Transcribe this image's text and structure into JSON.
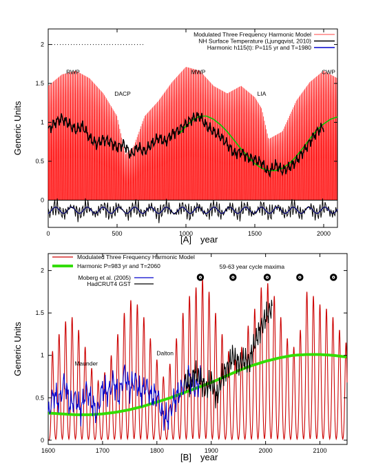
{
  "chart_data": [
    {
      "type": "line",
      "panel_label": "[A]",
      "xlabel": "year",
      "ylabel": "Generic Units",
      "xlim": [
        0,
        2100
      ],
      "ylim": [
        -0.35,
        2.2
      ],
      "xticks": [
        0,
        500,
        1000,
        1500,
        2000
      ],
      "yticks": [
        0,
        0.5,
        1,
        1.5,
        2
      ],
      "xtick_labels": [
        "0",
        "500",
        "1000",
        "1500",
        "2000"
      ],
      "ytick_labels": [
        "0",
        "0.5",
        "1",
        "1.5",
        "2"
      ],
      "legend_position": "top-right",
      "grid": false,
      "annotations": [
        {
          "text": "RWP",
          "x": 180,
          "y": 1.62
        },
        {
          "text": "DACP",
          "x": 540,
          "y": 1.34
        },
        {
          "text": "MWP",
          "x": 1090,
          "y": 1.62
        },
        {
          "text": "LIA",
          "x": 1550,
          "y": 1.34
        },
        {
          "text": "CWP",
          "x": 2035,
          "y": 1.62
        }
      ],
      "series": [
        {
          "name": "Modulated Three Frequency Harmonic Model",
          "color": "#ff0000",
          "envelope_x": [
            0,
            100,
            200,
            300,
            400,
            500,
            560,
            620,
            700,
            800,
            900,
            1000,
            1100,
            1200,
            1300,
            1400,
            1500,
            1550,
            1600,
            1700,
            1800,
            1900,
            2000,
            2100
          ],
          "envelope_y": [
            1.5,
            1.65,
            1.7,
            1.6,
            1.4,
            1.1,
            0.6,
            0.7,
            1.1,
            1.3,
            1.55,
            1.75,
            1.7,
            1.5,
            1.4,
            1.5,
            1.35,
            1.2,
            0.8,
            0.9,
            1.3,
            1.55,
            1.7,
            1.6
          ]
        },
        {
          "name": "NH Surface Temperature (Ljungqvist, 2010)",
          "color": "#000000",
          "x": [
            0,
            50,
            100,
            150,
            200,
            250,
            300,
            350,
            400,
            450,
            500,
            550,
            600,
            650,
            700,
            750,
            800,
            850,
            900,
            950,
            1000,
            1050,
            1100,
            1150,
            1200,
            1250,
            1300,
            1350,
            1400,
            1450,
            1500,
            1550,
            1600,
            1650,
            1700,
            1750,
            1800,
            1850,
            1900,
            1950,
            2000
          ],
          "y": [
            0.9,
            1.0,
            1.05,
            0.98,
            0.9,
            0.95,
            0.8,
            0.72,
            0.78,
            0.75,
            0.68,
            0.72,
            0.58,
            0.68,
            0.62,
            0.72,
            0.8,
            0.75,
            0.85,
            0.9,
            0.98,
            1.05,
            1.08,
            0.95,
            0.88,
            0.82,
            0.72,
            0.6,
            0.62,
            0.55,
            0.52,
            0.48,
            0.35,
            0.45,
            0.38,
            0.42,
            0.5,
            0.62,
            0.75,
            0.88,
            0.95
          ]
        },
        {
          "name": "Harmonic h115(t): P=115 yr and T=1980",
          "color": "#0000cc"
        }
      ],
      "bottom_strip_note": "",
      "green_curve": {
        "color": "#00cc00",
        "x": [
          950,
          1000,
          1050,
          1100,
          1150,
          1200,
          1250,
          1300,
          1350,
          1400,
          1450,
          1500,
          1550,
          1600,
          1650,
          1700,
          1750,
          1800,
          1850,
          1900,
          1950,
          2000,
          2050,
          2100
        ],
        "y": [
          0.85,
          0.95,
          1.03,
          1.08,
          1.08,
          1.04,
          0.97,
          0.88,
          0.77,
          0.66,
          0.56,
          0.47,
          0.41,
          0.38,
          0.38,
          0.41,
          0.47,
          0.56,
          0.67,
          0.79,
          0.9,
          0.98,
          1.04,
          1.07
        ]
      }
    },
    {
      "type": "line",
      "panel_label": "[B]",
      "xlabel": "year",
      "ylabel": "Generic Units",
      "xlim": [
        1600,
        2150
      ],
      "ylim": [
        -0.05,
        2.2
      ],
      "xticks": [
        1600,
        1700,
        1800,
        1900,
        2000,
        2100
      ],
      "yticks": [
        0,
        0.5,
        1,
        1.5,
        2
      ],
      "xtick_labels": [
        "1600",
        "1700",
        "1800",
        "1900",
        "2000",
        "2100"
      ],
      "ytick_labels": [
        "0",
        "0.5",
        "1",
        "1.5",
        "2"
      ],
      "legend_position": "top-left",
      "grid": false,
      "annotations": [
        {
          "text": "Maunder",
          "x": 1670,
          "y": 0.88
        },
        {
          "text": "Dalton",
          "x": 1815,
          "y": 1.0
        },
        {
          "text": "59-63 year cycle maxima",
          "x": 1975,
          "y": 2.02
        }
      ],
      "cycle_maxima_years": [
        1880,
        1940,
        2003,
        2063,
        2125
      ],
      "cycle_maxima_y": 1.92,
      "series": [
        {
          "name": "Modulated Three Frequency Harmonic Model",
          "color": "#cc0000",
          "peak_years": [
            1608,
            1620,
            1632,
            1644,
            1656,
            1668,
            1680,
            1692,
            1704,
            1716,
            1728,
            1740,
            1752,
            1764,
            1776,
            1788,
            1800,
            1812,
            1824,
            1836,
            1848,
            1860,
            1872,
            1884,
            1896,
            1908,
            1920,
            1932,
            1944,
            1956,
            1968,
            1980,
            1992,
            2004,
            2016,
            2028,
            2040,
            2052,
            2064,
            2076,
            2088,
            2100,
            2112,
            2124,
            2136,
            2148
          ],
          "peak_values": [
            1.05,
            1.25,
            1.4,
            1.45,
            1.3,
            1.1,
            0.85,
            0.7,
            0.8,
            1.0,
            1.25,
            1.5,
            1.65,
            1.6,
            1.45,
            1.2,
            0.95,
            0.75,
            0.9,
            1.2,
            1.5,
            1.7,
            1.8,
            1.9,
            1.75,
            1.5,
            1.25,
            1.05,
            0.95,
            1.1,
            1.35,
            1.55,
            1.8,
            1.85,
            1.7,
            1.45,
            1.2,
            1.1,
            1.3,
            1.75,
            1.7,
            1.6,
            1.55,
            1.45,
            1.3,
            1.15
          ]
        },
        {
          "name": "Harmonic P=983 yr and T=2060",
          "color": "#33dd00",
          "x": [
            1600,
            1625,
            1650,
            1675,
            1700,
            1725,
            1750,
            1775,
            1800,
            1825,
            1850,
            1875,
            1900,
            1925,
            1950,
            1975,
            2000,
            2025,
            2050,
            2075,
            2100,
            2125,
            2150
          ],
          "y": [
            0.32,
            0.31,
            0.3,
            0.3,
            0.31,
            0.33,
            0.36,
            0.4,
            0.45,
            0.5,
            0.56,
            0.62,
            0.68,
            0.75,
            0.82,
            0.88,
            0.93,
            0.97,
            1.0,
            1.01,
            1.01,
            1.0,
            0.98
          ]
        },
        {
          "name": "Moberg et al. (2005)",
          "color": "#0000cc",
          "x": [
            1600,
            1610,
            1620,
            1630,
            1640,
            1650,
            1660,
            1670,
            1680,
            1690,
            1700,
            1710,
            1720,
            1730,
            1740,
            1750,
            1760,
            1770,
            1780,
            1790,
            1800,
            1810,
            1820,
            1830,
            1840,
            1850,
            1860,
            1870,
            1880
          ],
          "y": [
            0.3,
            0.55,
            0.45,
            0.7,
            0.4,
            0.5,
            0.35,
            0.6,
            0.45,
            0.3,
            0.62,
            0.55,
            0.7,
            0.5,
            0.8,
            0.6,
            0.72,
            0.55,
            0.65,
            0.5,
            0.55,
            0.3,
            0.25,
            0.45,
            0.55,
            0.65,
            0.75,
            0.6,
            0.7
          ]
        },
        {
          "name": "HadCRUT4 GST",
          "color": "#000000",
          "x": [
            1850,
            1860,
            1870,
            1880,
            1890,
            1900,
            1910,
            1920,
            1930,
            1940,
            1950,
            1960,
            1970,
            1980,
            1990,
            2000,
            2010
          ],
          "y": [
            0.7,
            0.65,
            0.8,
            0.72,
            0.6,
            0.7,
            0.5,
            0.75,
            0.85,
            1.0,
            0.9,
            0.95,
            0.92,
            1.15,
            1.3,
            1.45,
            1.55
          ]
        }
      ]
    }
  ]
}
